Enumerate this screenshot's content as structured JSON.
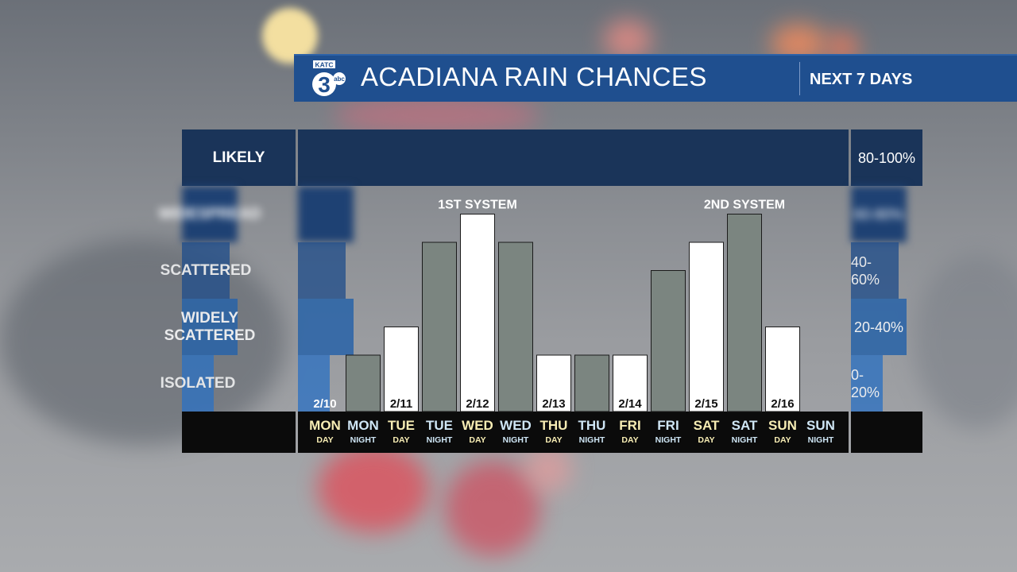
{
  "header": {
    "title": "ACADIANA RAIN CHANCES",
    "subtitle": "NEXT 7 DAYS",
    "logo_text": "KATC",
    "logo_number": "3",
    "logo_network": "abc",
    "colors": {
      "bar": "#1f4f8f",
      "text": "#ffffff"
    }
  },
  "categories_labels": [
    "LIKELY",
    "WIDESPREAD",
    "SCATTERED",
    "WIDELY\nSCATTERED",
    "ISOLATED"
  ],
  "percent_labels": [
    "80-100%",
    "60-80%",
    "40-60%",
    "20-40%",
    "0-20%"
  ],
  "chart_data": {
    "type": "bar",
    "title": "ACADIANA RAIN CHANCES",
    "subtitle": "NEXT 7 DAYS",
    "ylim": [
      0,
      100
    ],
    "y_unit": "%",
    "y_bands": [
      {
        "label": "ISOLATED",
        "range": "0-20%"
      },
      {
        "label": "WIDELY\nSCATTERED",
        "range": "20-40%"
      },
      {
        "label": "SCATTERED",
        "range": "40-60%"
      },
      {
        "label": "WIDESPREAD",
        "range": "60-80%"
      },
      {
        "label": "LIKELY",
        "range": "80-100%"
      }
    ],
    "categories": [
      {
        "day": "MON",
        "part": "DAY",
        "date": "2/10"
      },
      {
        "day": "MON",
        "part": "NIGHT",
        "date": ""
      },
      {
        "day": "TUE",
        "part": "DAY",
        "date": "2/11"
      },
      {
        "day": "TUE",
        "part": "NIGHT",
        "date": ""
      },
      {
        "day": "WED",
        "part": "DAY",
        "date": "2/12"
      },
      {
        "day": "WED",
        "part": "NIGHT",
        "date": ""
      },
      {
        "day": "THU",
        "part": "DAY",
        "date": "2/13"
      },
      {
        "day": "THU",
        "part": "NIGHT",
        "date": ""
      },
      {
        "day": "FRI",
        "part": "DAY",
        "date": "2/14"
      },
      {
        "day": "FRI",
        "part": "NIGHT",
        "date": ""
      },
      {
        "day": "SAT",
        "part": "DAY",
        "date": "2/15"
      },
      {
        "day": "SAT",
        "part": "NIGHT",
        "date": ""
      },
      {
        "day": "SUN",
        "part": "DAY",
        "date": "2/16"
      },
      {
        "day": "SUN",
        "part": "NIGHT",
        "date": ""
      }
    ],
    "values": [
      0,
      20,
      30,
      60,
      70,
      60,
      20,
      20,
      20,
      50,
      60,
      70,
      30,
      0
    ],
    "annotations": [
      {
        "text": "1ST SYSTEM",
        "category_index": 4
      },
      {
        "text": "2ND SYSTEM",
        "category_index": 11
      }
    ],
    "colors": {
      "day_bar": "#ffffff",
      "night_bar": "#7b8580",
      "day_label": "#f7edb4",
      "night_label": "#cfe6f5",
      "date_label": "#111111"
    },
    "grid": false,
    "legend": "none"
  }
}
